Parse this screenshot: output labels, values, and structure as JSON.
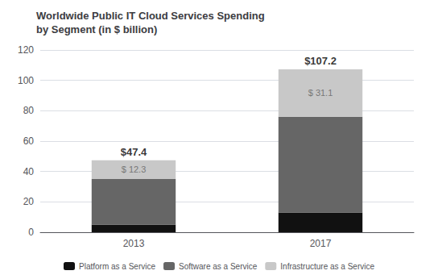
{
  "chart_data": {
    "type": "bar",
    "title": "Worldwide Public IT Cloud Services Spending\nby Segment (in $ billion)",
    "categories": [
      "2013",
      "2017"
    ],
    "stacked": true,
    "series": [
      {
        "name": "Platform as a Service",
        "color": "#111111",
        "values": [
          5.1,
          13.0
        ]
      },
      {
        "name": "Software as a Service",
        "color": "#666666",
        "values": [
          30.0,
          63.1
        ]
      },
      {
        "name": "Infrastructure as a Service",
        "color": "#c8c8c8",
        "values": [
          12.3,
          31.1
        ],
        "data_labels": true,
        "value_labels": [
          "$ 12.3",
          "$ 31.1"
        ]
      }
    ],
    "totals": [
      47.4,
      107.2
    ],
    "total_labels": [
      "$47.4",
      "$107.2"
    ],
    "ylim": [
      0,
      120
    ],
    "yticks": [
      0,
      20,
      40,
      60,
      80,
      100,
      120
    ],
    "grid": true,
    "legend": "bottom"
  }
}
